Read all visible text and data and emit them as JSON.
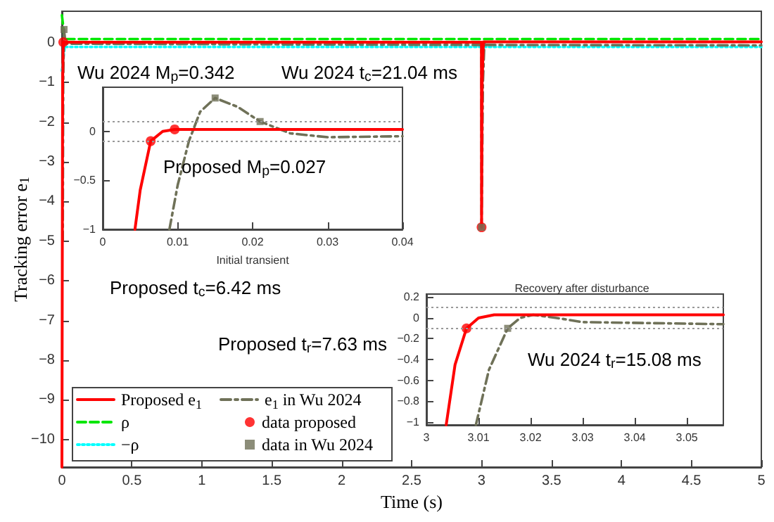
{
  "chart_data": [
    {
      "type": "line",
      "xlabel": "Time (s)",
      "ylabel": "Tracking error e$_{1}$",
      "xlim": [
        0,
        5
      ],
      "xticks": [
        0,
        0.5,
        1,
        1.5,
        2,
        2.5,
        3,
        3.5,
        4,
        4.5,
        5
      ],
      "ylim": [
        -10.7,
        0.8
      ],
      "yticks": [
        0,
        -1,
        -2,
        -3,
        -4,
        -5,
        -6,
        -7,
        -8,
        -9,
        -10
      ],
      "legend": "bottom left",
      "annotations": [
        "Wu 2024 M$_{p}$=0.342",
        "Wu 2024 t$_{c}$=21.04 ms",
        "Proposed t$_{c}$=6.42 ms",
        "Proposed t$_{r}$=7.63 ms"
      ],
      "series": [
        {
          "name": "Proposed e$_{1}$",
          "color": "#ff0000",
          "line_style": "solid",
          "x": [
            0,
            0.005,
            0.0096,
            2.999,
            3.0,
            3.004,
            3.013,
            5
          ],
          "values": [
            -10.7,
            -1,
            0.02,
            0.02,
            -4.65,
            -1,
            0.03,
            0.03
          ]
        },
        {
          "name": "ρ",
          "color": "#00e600",
          "line_style": "dashed",
          "x": [
            0,
            0.02,
            5
          ],
          "values": [
            0.7,
            0.1,
            0.1
          ]
        },
        {
          "name": "−ρ",
          "color": "#00ffff",
          "line_style": "dotted",
          "x": [
            0,
            0.02,
            5
          ],
          "values": [
            -0.7,
            -0.1,
            -0.1
          ]
        },
        {
          "name": "e$_{1}$ in Wu 2024",
          "color": "#6f7158",
          "line_style": "dashdot",
          "x": [
            0.006,
            0.009,
            0.015,
            0.025,
            2.999,
            3.0,
            3.0095,
            3.0205,
            3.03,
            5
          ],
          "values": [
            -5,
            -1,
            0.34,
            -0.02,
            -0.05,
            -4.65,
            -1,
            0.03,
            -0.05,
            -0.06
          ]
        },
        {
          "name": "data proposed",
          "type": "scatter",
          "color": "#ff0000",
          "marker": "circle",
          "x": [
            0.0096,
            3.0
          ],
          "values": [
            0.02,
            -4.65
          ]
        },
        {
          "name": "data in Wu 2024",
          "type": "scatter",
          "color": "#6f7158",
          "marker": "square",
          "x": [
            0.015,
            3.0
          ],
          "values": [
            0.34,
            -4.65
          ]
        }
      ]
    },
    {
      "type": "line",
      "xlabel": "Initial transient",
      "xlim": [
        0,
        0.04
      ],
      "xticks": [
        0,
        0.01,
        0.02,
        0.03,
        0.04
      ],
      "ylim": [
        -1,
        0.45
      ],
      "yticks": [
        0,
        -0.5,
        -1
      ],
      "annotations": [
        "Proposed M$_{p}$=0.027"
      ],
      "ref_lines": [
        {
          "axis": "y",
          "value": 0.1,
          "color": "#999999",
          "line_style": "dotted"
        },
        {
          "axis": "y",
          "value": -0.1,
          "color": "#999999",
          "line_style": "dotted"
        }
      ],
      "series": [
        {
          "color": "#ff0000",
          "line_style": "solid",
          "x": [
            0.0043,
            0.005,
            0.0064,
            0.008,
            0.0096,
            0.012,
            0.04
          ],
          "values": [
            -1,
            -0.6,
            -0.1,
            0.0,
            0.02,
            0.02,
            0.02
          ]
        },
        {
          "color": "#6f7158",
          "line_style": "dashdot",
          "x": [
            0.0089,
            0.01,
            0.0115,
            0.013,
            0.015,
            0.018,
            0.021,
            0.025,
            0.03,
            0.04
          ],
          "values": [
            -1,
            -0.55,
            -0.1,
            0.2,
            0.34,
            0.25,
            0.1,
            -0.02,
            -0.06,
            -0.05
          ]
        },
        {
          "type": "scatter",
          "color": "#ff0000",
          "marker": "circle",
          "x": [
            0.0064,
            0.0096
          ],
          "values": [
            -0.1,
            0.02
          ]
        },
        {
          "type": "scatter",
          "color": "#6f7158",
          "marker": "square",
          "x": [
            0.015,
            0.021
          ],
          "values": [
            0.34,
            0.1
          ]
        }
      ]
    },
    {
      "type": "line",
      "title": "Recovery after disturbance",
      "xlim": [
        3,
        3.057
      ],
      "xticks": [
        3,
        3.01,
        3.02,
        3.03,
        3.04,
        3.05
      ],
      "ylim": [
        -1.03,
        0.23
      ],
      "yticks": [
        0.2,
        0,
        -0.2,
        -0.4,
        -0.6,
        -0.8,
        -1
      ],
      "annotations": [
        "Wu 2024 t$_{r}$=15.08 ms"
      ],
      "ref_lines": [
        {
          "axis": "y",
          "value": 0.1,
          "color": "#999999",
          "line_style": "dotted"
        },
        {
          "axis": "y",
          "value": -0.1,
          "color": "#999999",
          "line_style": "dotted"
        }
      ],
      "series": [
        {
          "color": "#ff0000",
          "line_style": "solid",
          "x": [
            3.0038,
            3.0055,
            3.0077,
            3.01,
            3.013,
            3.057
          ],
          "values": [
            -1.03,
            -0.45,
            -0.1,
            0.0,
            0.03,
            0.03
          ]
        },
        {
          "color": "#6f7158",
          "line_style": "dashdot",
          "x": [
            3.0095,
            3.012,
            3.0156,
            3.018,
            3.0205,
            3.025,
            3.03,
            3.057
          ],
          "values": [
            -1.03,
            -0.5,
            -0.1,
            0.0,
            0.03,
            0.0,
            -0.04,
            -0.06
          ]
        },
        {
          "type": "scatter",
          "color": "#ff0000",
          "marker": "circle",
          "x": [
            3.0077
          ],
          "values": [
            -0.1
          ]
        },
        {
          "type": "scatter",
          "color": "#6f7158",
          "marker": "square",
          "x": [
            3.0156
          ],
          "values": [
            -0.1
          ]
        }
      ]
    }
  ]
}
